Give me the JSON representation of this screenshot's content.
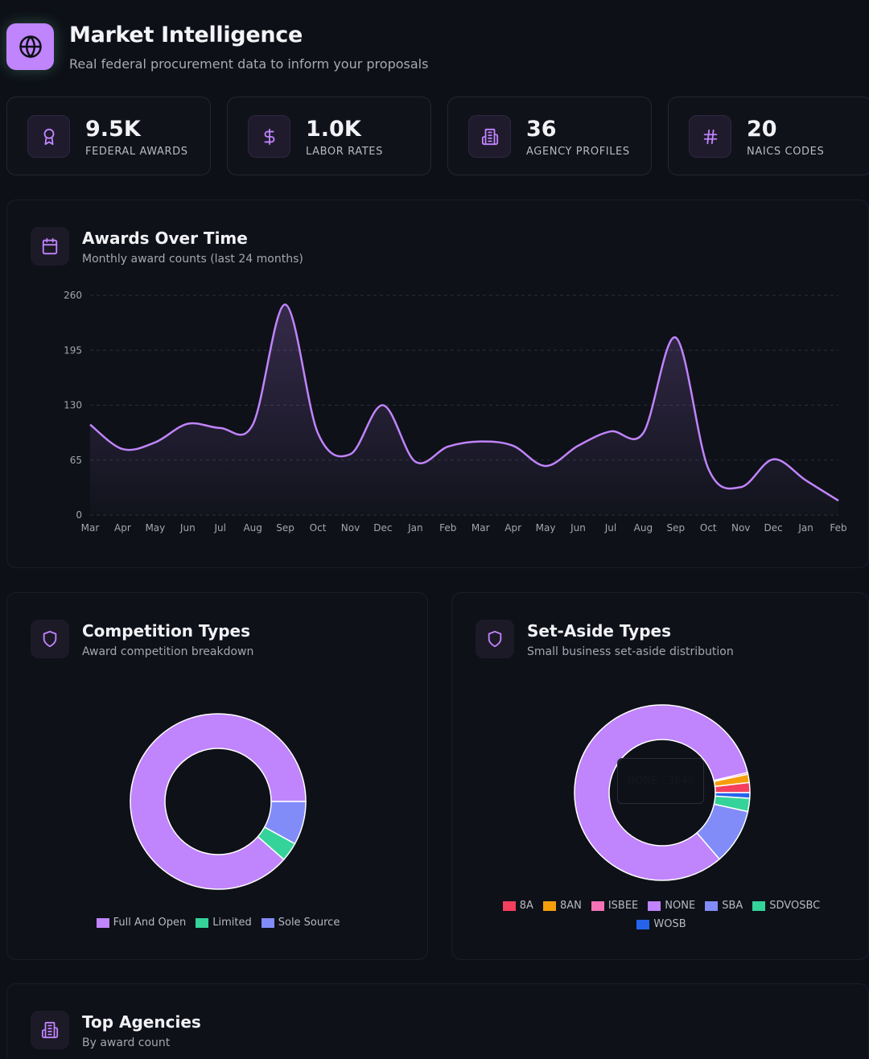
{
  "header": {
    "title": "Market Intelligence",
    "subtitle": "Real federal procurement data to inform your proposals",
    "icon": "globe-icon"
  },
  "stats": [
    {
      "value": "9.5K",
      "label": "FEDERAL AWARDS",
      "icon": "award-icon"
    },
    {
      "value": "1.0K",
      "label": "LABOR RATES",
      "icon": "dollar-icon"
    },
    {
      "value": "36",
      "label": "AGENCY PROFILES",
      "icon": "building-icon"
    },
    {
      "value": "20",
      "label": "NAICS CODES",
      "icon": "hash-icon"
    }
  ],
  "awards_card": {
    "title": "Awards Over Time",
    "subtitle": "Monthly award counts (last 24 months)",
    "icon": "calendar-icon"
  },
  "competition_card": {
    "title": "Competition Types",
    "subtitle": "Award competition breakdown",
    "icon": "shield-icon"
  },
  "setaside_card": {
    "title": "Set-Aside Types",
    "subtitle": "Small business set-aside distribution",
    "icon": "shield-icon",
    "tooltip": "NONE : 3649"
  },
  "agencies_card": {
    "title": "Top Agencies",
    "subtitle": "By award count",
    "icon": "building-icon"
  },
  "colors": {
    "accent": "#c084fc",
    "line": "#c084fc",
    "background": "#0d1017"
  },
  "chart_data": [
    {
      "type": "area",
      "categories": [
        "Mar",
        "Apr",
        "May",
        "Jun",
        "Jul",
        "Aug",
        "Sep",
        "Oct",
        "Nov",
        "Dec",
        "Jan",
        "Feb",
        "Mar",
        "Apr",
        "May",
        "Jun",
        "Jul",
        "Aug",
        "Sep",
        "Oct",
        "Nov",
        "Dec",
        "Jan",
        "Feb"
      ],
      "values": [
        107,
        78,
        86,
        108,
        103,
        107,
        249,
        97,
        72,
        130,
        63,
        81,
        87,
        82,
        58,
        82,
        99,
        97,
        210,
        55,
        33,
        66,
        41,
        17
      ],
      "yticks": [
        0,
        65,
        130,
        195,
        260
      ],
      "ylim": [
        0,
        260
      ],
      "grid": true
    },
    {
      "type": "pie",
      "labels": [
        "Full And Open",
        "Limited",
        "Sole Source"
      ],
      "values": [
        88.5,
        3.5,
        8.0
      ],
      "colors": [
        "#c084fc",
        "#34d399",
        "#818cf8"
      ],
      "legend": "bottom"
    },
    {
      "type": "pie",
      "labels": [
        "8A",
        "8AN",
        "ISBEE",
        "NONE",
        "SBA",
        "SDVOSBC",
        "WOSB"
      ],
      "values": [
        82,
        67,
        14,
        3649,
        451,
        108,
        45
      ],
      "colors": [
        "#f43f5e",
        "#f59e0b",
        "#f472b6",
        "#c084fc",
        "#818cf8",
        "#34d399",
        "#2563eb"
      ],
      "legend": "bottom"
    }
  ]
}
